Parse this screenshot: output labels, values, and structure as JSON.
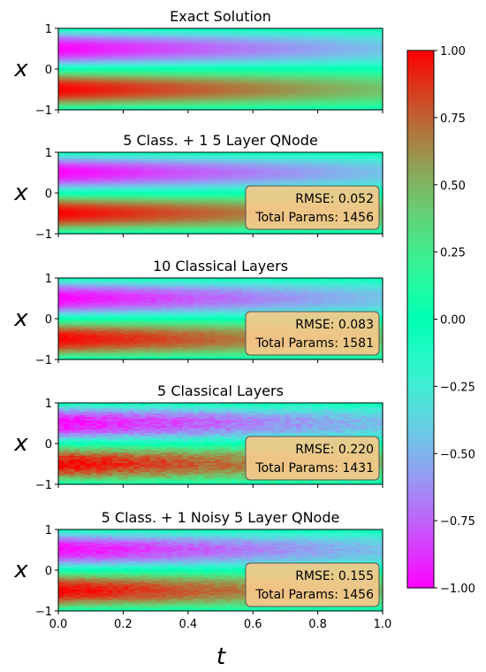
{
  "chart_data": {
    "type": "heatmap",
    "colormap": "rainbow",
    "colorbar": {
      "range": [
        -1.0,
        1.0
      ],
      "ticks": [
        {
          "value": 1.0,
          "label": "1.00"
        },
        {
          "value": 0.75,
          "label": "0.75"
        },
        {
          "value": 0.5,
          "label": "0.50"
        },
        {
          "value": 0.25,
          "label": "0.25"
        },
        {
          "value": 0.0,
          "label": "0.00"
        },
        {
          "value": -0.25,
          "label": "−0.25"
        },
        {
          "value": -0.5,
          "label": "−0.50"
        },
        {
          "value": -0.75,
          "label": "−0.75"
        },
        {
          "value": -1.0,
          "label": "−1.00"
        }
      ]
    },
    "xlabel": "t",
    "ylabel": "x",
    "xlim": [
      0.0,
      1.0
    ],
    "ylim": [
      -1,
      1
    ],
    "x_ticks": [
      {
        "value": 0.0,
        "label": "0.0"
      },
      {
        "value": 0.2,
        "label": "0.2"
      },
      {
        "value": 0.4,
        "label": "0.4"
      },
      {
        "value": 0.6,
        "label": "0.6"
      },
      {
        "value": 0.8,
        "label": "0.8"
      },
      {
        "value": 1.0,
        "label": "1.0"
      }
    ],
    "y_ticks": [
      {
        "value": 1,
        "label": "1"
      },
      {
        "value": 0,
        "label": "0"
      },
      {
        "value": -1,
        "label": "−1"
      }
    ],
    "panels": [
      {
        "title": "Exact Solution",
        "rmse_label": "",
        "params_label": "",
        "noise": 0
      },
      {
        "title": "5 Class. + 1  5 Layer  QNode",
        "rmse_label": "RMSE: 0.052",
        "params_label": "Total Params: 1456",
        "noise": 0.01
      },
      {
        "title": "10 Classical Layers",
        "rmse_label": "RMSE: 0.083",
        "params_label": "Total Params: 1581",
        "noise": 0.03
      },
      {
        "title": "5 Classical Layers",
        "rmse_label": "RMSE: 0.220",
        "params_label": "Total Params: 1431",
        "noise": 0.08
      },
      {
        "title": "5 Class. + 1 Noisy  5 Layer  QNode",
        "rmse_label": "RMSE: 0.155",
        "params_label": "Total Params: 1456",
        "noise": 0.05
      }
    ]
  }
}
